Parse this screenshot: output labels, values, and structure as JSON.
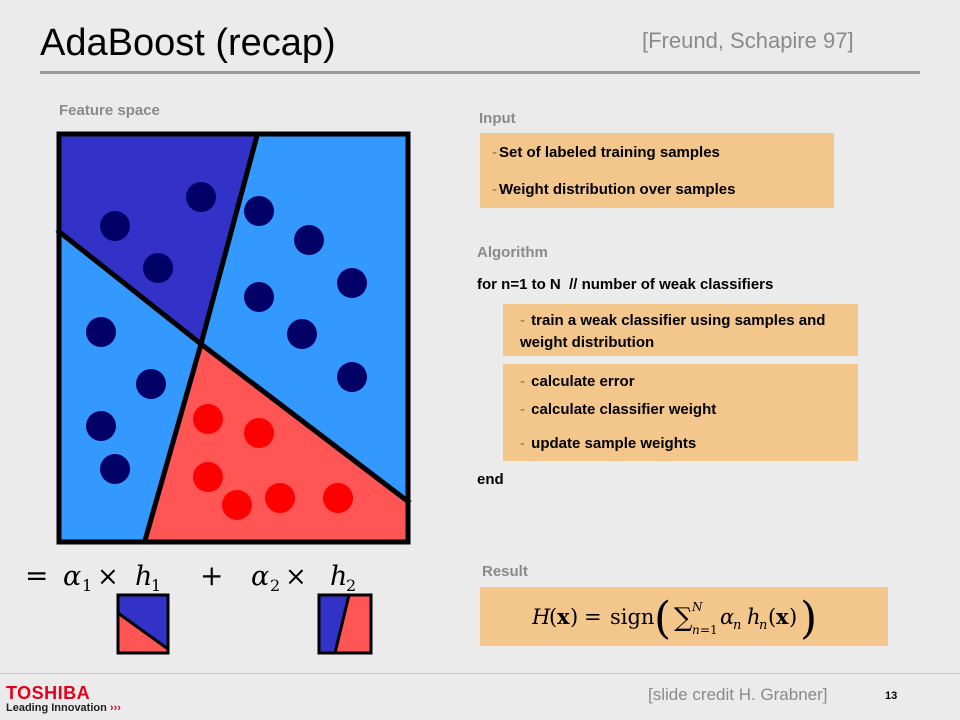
{
  "header": {
    "title": "AdaBoost (recap)",
    "citation": "[Freund, Schapire 97]"
  },
  "feature_space": {
    "label": "Feature space",
    "colors": {
      "dark_blue": "#3232c8",
      "light_blue": "#3399ff",
      "red": "#ff5555",
      "dot_blue": "#000066",
      "dot_red": "#ff0000"
    }
  },
  "input": {
    "label": "Input",
    "items": [
      "Set of labeled training samples",
      "Weight distribution over samples"
    ]
  },
  "algorithm": {
    "label": "Algorithm",
    "loop": "for n=1 to N  // number of weak classifiers",
    "step1": [
      "train a weak classifier using samples and",
      "weight distribution"
    ],
    "steps": [
      "calculate error",
      "calculate classifier weight",
      "update sample weights"
    ],
    "end": "end"
  },
  "result": {
    "label": "Result"
  },
  "footer": {
    "credit": "[slide credit H. Grabner]",
    "page_number": "13",
    "brand": "TOSHIBA",
    "tagline": "Leading Innovation"
  }
}
